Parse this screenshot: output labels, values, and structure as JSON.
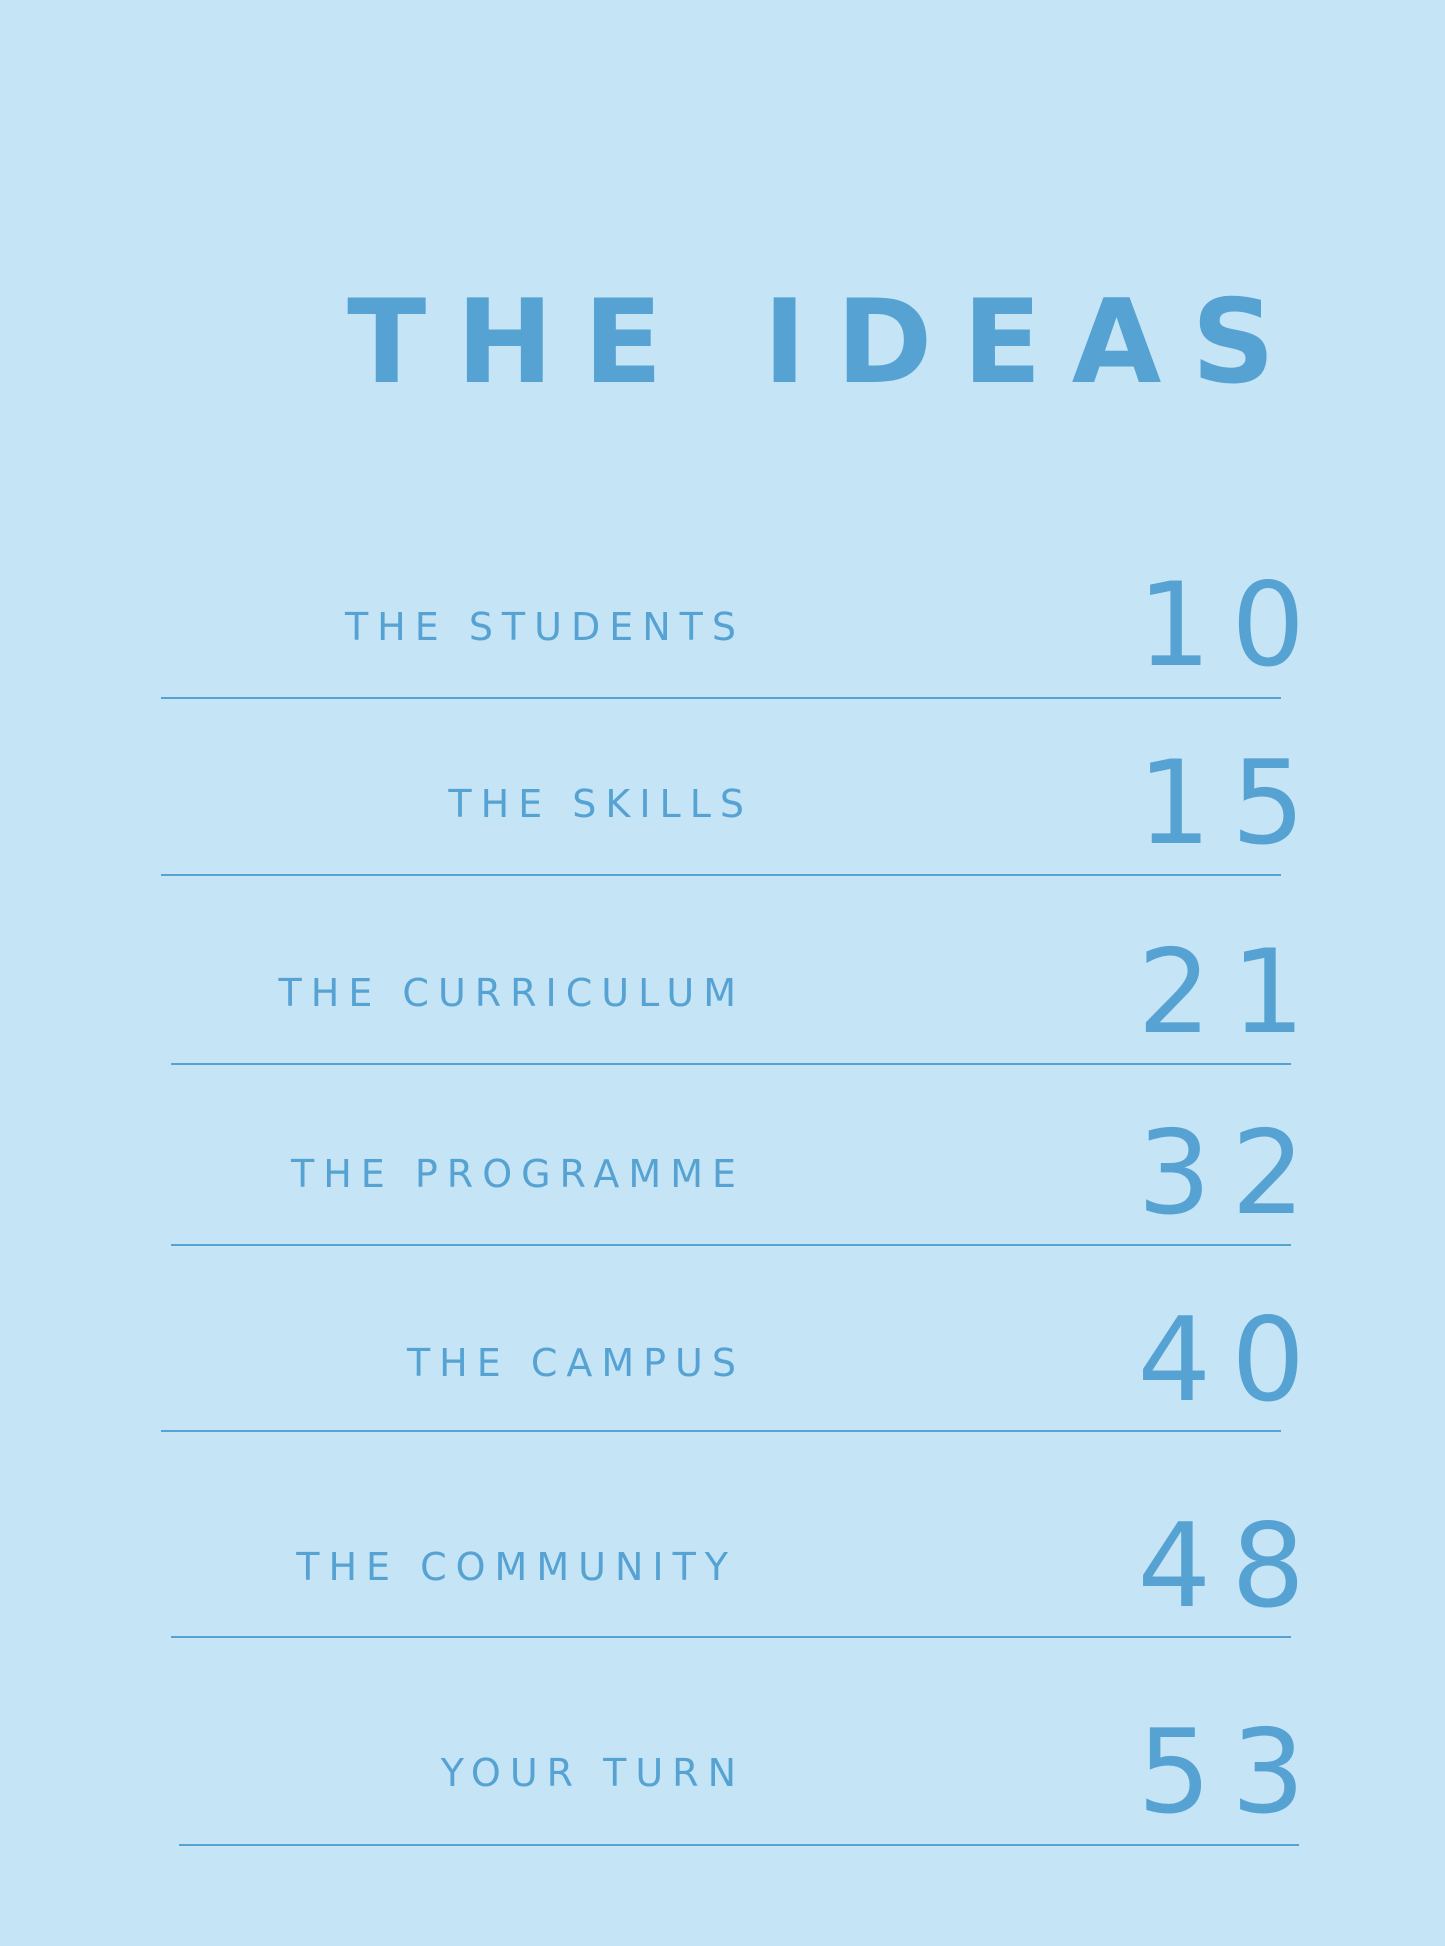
{
  "title": "THE IDEAS",
  "contents": [
    {
      "label": "THE STUDENTS",
      "page": "10"
    },
    {
      "label": "THE SKILLS",
      "page": "15"
    },
    {
      "label": "THE CURRICULUM",
      "page": "21"
    },
    {
      "label": "THE PROGRAMME",
      "page": "32"
    },
    {
      "label": "THE CAMPUS",
      "page": "40"
    },
    {
      "label": "THE COMMUNITY",
      "page": "48"
    },
    {
      "label": "YOUR TURN",
      "page": "53"
    }
  ],
  "colors": {
    "background": "#c5e4f5",
    "text": "#56a3d3"
  }
}
